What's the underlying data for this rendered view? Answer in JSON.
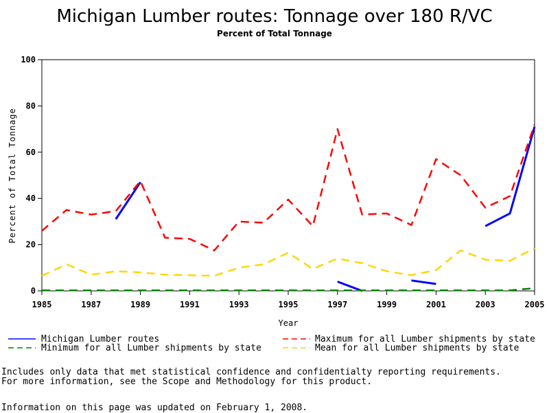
{
  "chart_data": {
    "type": "line",
    "title": "Michigan Lumber routes: Tonnage over 180 R/VC",
    "subtitle": "Percent of Total Tonnage",
    "xlabel": "Year",
    "ylabel": "Percent of Total Tonnage",
    "xlim": [
      1985,
      2005
    ],
    "ylim": [
      0,
      100
    ],
    "x_ticks": [
      "1985",
      "1987",
      "1989",
      "1991",
      "1993",
      "1995",
      "1997",
      "1999",
      "2001",
      "2003",
      "2005"
    ],
    "y_ticks": [
      "0",
      "20",
      "40",
      "60",
      "80",
      "100"
    ],
    "x": [
      1985,
      1986,
      1987,
      1988,
      1989,
      1990,
      1991,
      1992,
      1993,
      1994,
      1995,
      1996,
      1997,
      1998,
      1999,
      2000,
      2001,
      2002,
      2003,
      2004,
      2005
    ],
    "series": [
      {
        "name": "Michigan Lumber routes",
        "color": "#0000ff",
        "dash": "solid",
        "values": [
          null,
          null,
          null,
          31,
          47,
          null,
          null,
          null,
          null,
          null,
          null,
          null,
          4,
          0,
          null,
          4.5,
          3,
          null,
          28,
          33.5,
          71
        ]
      },
      {
        "name": "Maximum for all Lumber shipments by state",
        "color": "#ff0000",
        "dash": "dashed",
        "values": [
          26,
          35,
          33,
          34.5,
          47.5,
          23,
          22.5,
          17.5,
          30,
          29.5,
          39.5,
          28,
          70,
          33,
          33.5,
          28.5,
          57,
          50,
          36,
          41,
          72
        ]
      },
      {
        "name": "Minimum for all Lumber shipments by state",
        "color": "#008000",
        "dash": "dashed",
        "values": [
          0.2,
          0.2,
          0.2,
          0.2,
          0.2,
          0.2,
          0.2,
          0.2,
          0.2,
          0.2,
          0.2,
          0.2,
          0.2,
          0.2,
          0.2,
          0.2,
          0.2,
          0.2,
          0.2,
          0.2,
          1.2
        ]
      },
      {
        "name": "Mean for all Lumber shipments by state",
        "color": "#ffd700",
        "dash": "dashed",
        "values": [
          6.5,
          11.5,
          7,
          8.5,
          8,
          7,
          6.8,
          6.5,
          10,
          11.5,
          16.5,
          9.5,
          14,
          12,
          8.5,
          6.8,
          9,
          17.5,
          13.5,
          13,
          18.5
        ]
      }
    ],
    "legend_position": "bottom"
  },
  "notes": {
    "line1": "Includes only data that met statistical confidence and confidentialty reporting requirements.",
    "line2": "For more information, see the Scope and Methodology for this product.",
    "updated": "Information on this page was updated on February 1, 2008."
  }
}
